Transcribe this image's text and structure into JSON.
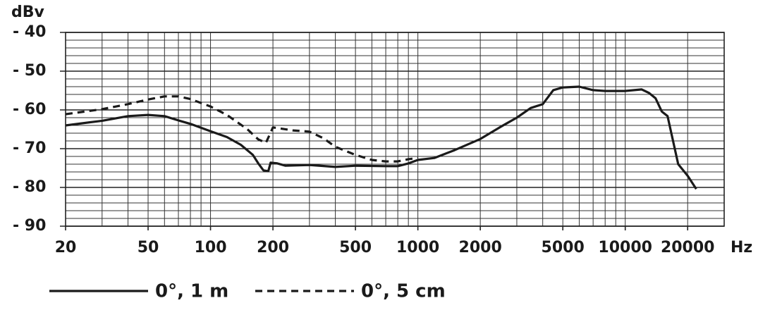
{
  "chart_data": {
    "type": "line",
    "y_label": "dBv",
    "x_label": "Hz",
    "xscale": "log",
    "xlim": [
      20,
      30000
    ],
    "ylim": [
      -90,
      -40
    ],
    "xticks": [
      20,
      50,
      100,
      200,
      500,
      1000,
      2000,
      5000,
      10000,
      20000
    ],
    "yticks": [
      {
        "value": -40,
        "label": "- 40"
      },
      {
        "value": -50,
        "label": "- 50"
      },
      {
        "value": -60,
        "label": "- 60"
      },
      {
        "value": -70,
        "label": "- 70"
      },
      {
        "value": -80,
        "label": "- 80"
      },
      {
        "value": -90,
        "label": "- 90"
      }
    ],
    "xgrid": [
      20,
      30,
      40,
      50,
      60,
      70,
      80,
      90,
      100,
      200,
      300,
      400,
      500,
      600,
      700,
      800,
      900,
      1000,
      2000,
      3000,
      4000,
      5000,
      6000,
      7000,
      8000,
      9000,
      10000,
      20000
    ],
    "ygrid": [
      -88,
      -86,
      -84,
      -82,
      -80,
      -78,
      -76,
      -74,
      -72,
      -70,
      -68,
      -66,
      -64,
      -62,
      -60,
      -58,
      -56,
      -54,
      -52,
      -50,
      -48,
      -46,
      -44,
      -42
    ],
    "grid": true,
    "series": [
      {
        "name": "0°, 1 m",
        "color": "#1a1a1a",
        "line_style": "solid",
        "x": [
          20,
          30,
          40,
          50,
          60,
          70,
          80,
          100,
          120,
          140,
          160,
          170,
          180,
          190,
          195,
          210,
          230,
          300,
          400,
          500,
          700,
          800,
          900,
          1000,
          1200,
          1500,
          2000,
          2500,
          3000,
          3500,
          4000,
          4500,
          5000,
          6000,
          7000,
          8000,
          10000,
          12000,
          13000,
          14000,
          15000,
          16000,
          18000,
          20000,
          22000
        ],
        "values": [
          -64,
          -62.8,
          -61.6,
          -61.3,
          -61.6,
          -62.7,
          -63.6,
          -65.5,
          -67,
          -69,
          -71.6,
          -73.8,
          -75.6,
          -75.8,
          -73.6,
          -73.8,
          -74.4,
          -74.2,
          -74.7,
          -74.4,
          -74.5,
          -74.5,
          -73.8,
          -72.9,
          -72.4,
          -70.4,
          -67.5,
          -64.4,
          -62,
          -59.5,
          -58.5,
          -54.9,
          -54.2,
          -54,
          -54.9,
          -55.1,
          -55.1,
          -54.7,
          -55.6,
          -57,
          -60.4,
          -61.6,
          -74,
          -77,
          -80.4
        ]
      },
      {
        "name": "0°, 5 cm",
        "color": "#1a1a1a",
        "line_style": "dashed",
        "x": [
          20,
          30,
          40,
          50,
          60,
          70,
          80,
          100,
          120,
          150,
          170,
          185,
          200,
          250,
          300,
          350,
          400,
          500,
          600,
          700,
          800,
          900,
          1000
        ],
        "values": [
          -61.1,
          -59.8,
          -58.5,
          -57.3,
          -56.5,
          -56.5,
          -57.2,
          -59.1,
          -61.3,
          -64.9,
          -67.6,
          -68.5,
          -64.5,
          -65.3,
          -65.6,
          -67.3,
          -69.5,
          -71.6,
          -72.9,
          -73.3,
          -73.3,
          -72.7,
          -72.4
        ]
      }
    ]
  }
}
